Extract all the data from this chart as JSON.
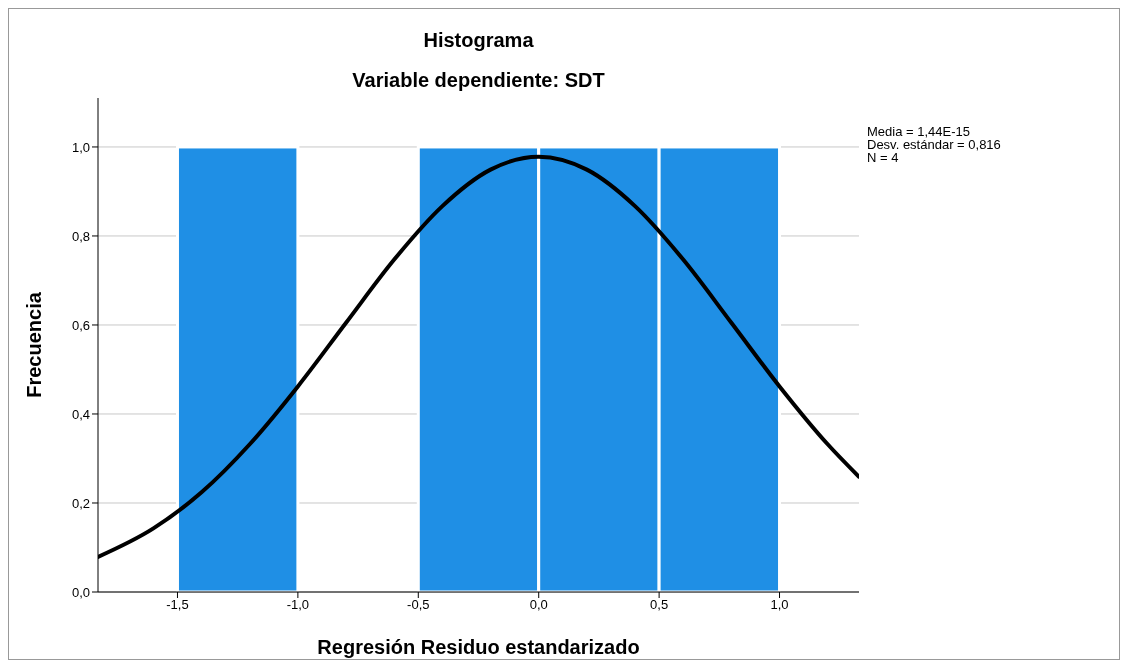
{
  "chart_data": {
    "type": "histogram",
    "title": "Histograma",
    "subtitle": "Variable dependiente: SDT",
    "xlabel": "Regresión Residuo estandarizado",
    "ylabel": "Frecuencia",
    "bins": [
      -1.5,
      -1.0,
      -0.5,
      0.0,
      0.5,
      1.0
    ],
    "values": [
      1,
      0,
      1,
      1,
      1
    ],
    "color": "#1f8fe5",
    "series": [
      {
        "type": "line",
        "color": "#000000",
        "x": [
          -1.83,
          -1.6,
          -1.4,
          -1.2,
          -1.0,
          -0.8,
          -0.6,
          -0.4,
          -0.2,
          0.0,
          0.2,
          0.4,
          0.6,
          0.8,
          1.0,
          1.2,
          1.33
        ],
        "values": [
          0.079,
          0.143,
          0.224,
          0.332,
          0.462,
          0.605,
          0.747,
          0.867,
          0.949,
          0.978,
          0.949,
          0.867,
          0.747,
          0.605,
          0.462,
          0.332,
          0.259
        ]
      }
    ],
    "xlim": [
      -1.83,
      1.33
    ],
    "xticks": [
      {
        "value": -1.5,
        "label": "-1,5"
      },
      {
        "value": -1.0,
        "label": "-1,0"
      },
      {
        "value": -0.5,
        "label": "-0,5"
      },
      {
        "value": 0.0,
        "label": "0,0"
      },
      {
        "value": 0.5,
        "label": "0,5"
      },
      {
        "value": 1.0,
        "label": "1,0"
      }
    ],
    "ylim": [
      0,
      1.11
    ],
    "yticks": [
      {
        "value": 0,
        "label": "0,0"
      },
      {
        "value": 0.2,
        "label": "0,2"
      },
      {
        "value": 0.4,
        "label": "0,4"
      },
      {
        "value": 0.6,
        "label": "0,6"
      },
      {
        "value": 0.8,
        "label": "0,8"
      },
      {
        "value": 1.0,
        "label": "1,0"
      }
    ],
    "grid": "y",
    "annotations": [
      "Media = 1,44E-15",
      "Desv. estándar = 0,816",
      "N = 4"
    ]
  }
}
